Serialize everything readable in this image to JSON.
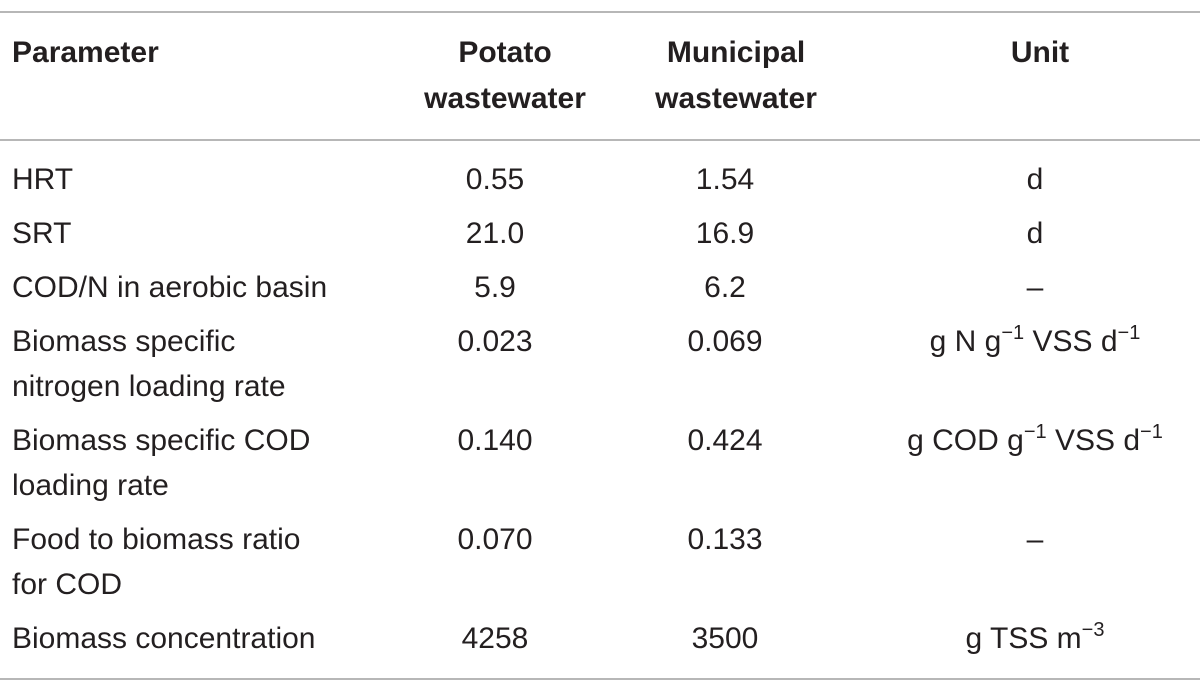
{
  "header": {
    "parameter": "Parameter",
    "potato_line1": "Potato",
    "potato_line2": "wastewater",
    "municipal_line1": "Municipal",
    "municipal_line2": "wastewater",
    "unit": "Unit"
  },
  "rows": [
    {
      "param": [
        "HRT"
      ],
      "potato": "0.55",
      "municipal": "1.54",
      "unit": "d"
    },
    {
      "param": [
        "SRT"
      ],
      "potato": "21.0",
      "municipal": "16.9",
      "unit": "d"
    },
    {
      "param": [
        "COD/N in aerobic basin"
      ],
      "potato": "5.9",
      "municipal": "6.2",
      "unit": "–"
    },
    {
      "param": [
        "Biomass specific",
        "nitrogen loading rate"
      ],
      "potato": "0.023",
      "municipal": "0.069",
      "unit_parts": {
        "a": "g N g",
        "sup1": "−1",
        "b": " VSS d",
        "sup2": "−1"
      }
    },
    {
      "param": [
        "Biomass specific COD",
        "loading rate"
      ],
      "potato": "0.140",
      "municipal": "0.424",
      "unit_parts": {
        "a": "g COD g",
        "sup1": "−1",
        "b": " VSS d",
        "sup2": "−1"
      }
    },
    {
      "param": [
        "Food to biomass ratio",
        "for COD"
      ],
      "potato": "0.070",
      "municipal": "0.133",
      "unit": "–"
    },
    {
      "param": [
        "Biomass concentration"
      ],
      "potato": "4258",
      "municipal": "3500",
      "unit_parts": {
        "a": "g TSS m",
        "sup1": "−3"
      }
    }
  ]
}
